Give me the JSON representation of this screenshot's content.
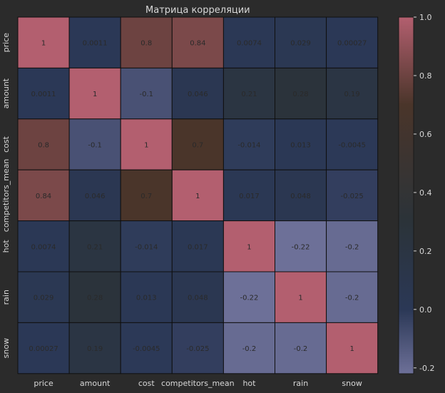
{
  "chart_data": {
    "type": "heatmap",
    "title": "Матрица корреляции",
    "row_labels": [
      "price",
      "amount",
      "cost",
      "competitors_mean",
      "hot",
      "rain",
      "snow"
    ],
    "col_labels": [
      "price",
      "amount",
      "cost",
      "competitors_mean",
      "hot",
      "rain",
      "snow"
    ],
    "values": [
      [
        1,
        0.0011,
        0.8,
        0.84,
        0.0074,
        0.029,
        0.00027
      ],
      [
        0.0011,
        1,
        -0.1,
        0.046,
        0.21,
        0.28,
        0.19
      ],
      [
        0.8,
        -0.1,
        1,
        0.7,
        -0.014,
        0.013,
        -0.0045
      ],
      [
        0.84,
        0.046,
        0.7,
        1,
        0.017,
        0.048,
        -0.025
      ],
      [
        0.0074,
        0.21,
        -0.014,
        0.017,
        1,
        -0.22,
        -0.2
      ],
      [
        0.029,
        0.28,
        0.013,
        0.048,
        -0.22,
        1,
        -0.2
      ],
      [
        0.00027,
        0.19,
        -0.0045,
        -0.025,
        -0.2,
        -0.2,
        1
      ]
    ],
    "cell_labels": [
      [
        "1",
        "0.0011",
        "0.8",
        "0.84",
        "0.0074",
        "0.029",
        "0.00027"
      ],
      [
        "0.0011",
        "1",
        "-0.1",
        "0.046",
        "0.21",
        "0.28",
        "0.19"
      ],
      [
        "0.8",
        "-0.1",
        "1",
        "0.7",
        "-0.014",
        "0.013",
        "-0.0045"
      ],
      [
        "0.84",
        "0.046",
        "0.7",
        "1",
        "0.017",
        "0.048",
        "-0.025"
      ],
      [
        "0.0074",
        "0.21",
        "-0.014",
        "0.017",
        "1",
        "-0.22",
        "-0.2"
      ],
      [
        "0.029",
        "0.28",
        "0.013",
        "0.048",
        "-0.22",
        "1",
        "-0.2"
      ],
      [
        "0.00027",
        "0.19",
        "-0.0045",
        "-0.025",
        "-0.2",
        "-0.2",
        "1"
      ]
    ],
    "colorbar": {
      "min": -0.22,
      "max": 1.0,
      "ticks": [
        -0.2,
        0.0,
        0.2,
        0.4,
        0.6,
        0.8,
        1.0
      ],
      "tick_labels": [
        "-0.2",
        "0.0",
        "0.2",
        "0.4",
        "0.6",
        "0.8",
        "1.0"
      ],
      "colors": {
        "low": "#6d7098",
        "mid_low": "#2b3856",
        "mid": "#2b3339",
        "mid_high": "#4a352a",
        "high": "#b35f6f"
      }
    },
    "background": "#2b2b2b",
    "text_color": "#d8d8d8",
    "cell_text_color": "#2a2a2a",
    "grid_line_color": "#0f0f0f"
  }
}
